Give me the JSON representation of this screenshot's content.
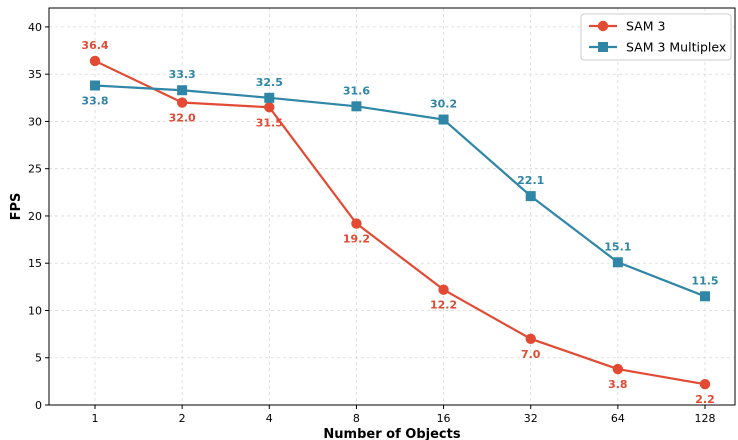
{
  "chart_data": {
    "type": "line",
    "title": "",
    "xlabel": "Number of Objects",
    "ylabel": "FPS",
    "categories": [
      "1",
      "2",
      "4",
      "8",
      "16",
      "32",
      "64",
      "128"
    ],
    "ylim": [
      0,
      42
    ],
    "yticks": [
      0,
      5,
      10,
      15,
      20,
      25,
      30,
      35,
      40
    ],
    "grid": true,
    "legend_position": "top-right",
    "series": [
      {
        "name": "SAM 3",
        "color": "#e24a33",
        "marker": "circle",
        "values": [
          36.4,
          32.0,
          31.5,
          19.2,
          12.2,
          7.0,
          3.8,
          2.2
        ],
        "labels": [
          "36.4",
          "32.0",
          "31.5",
          "19.2",
          "12.2",
          "7.0",
          "3.8",
          "2.2"
        ],
        "label_side": [
          "above",
          "below",
          "below",
          "below",
          "below",
          "below",
          "below",
          "below"
        ]
      },
      {
        "name": "SAM 3 Multiplex",
        "color": "#2f86a6",
        "marker": "square",
        "values": [
          33.8,
          33.3,
          32.5,
          31.6,
          30.2,
          22.1,
          15.1,
          11.5
        ],
        "labels": [
          "33.8",
          "33.3",
          "32.5",
          "31.6",
          "30.2",
          "22.1",
          "15.1",
          "11.5"
        ],
        "label_side": [
          "below",
          "above",
          "above",
          "above",
          "above",
          "above",
          "above",
          "above"
        ]
      }
    ]
  }
}
